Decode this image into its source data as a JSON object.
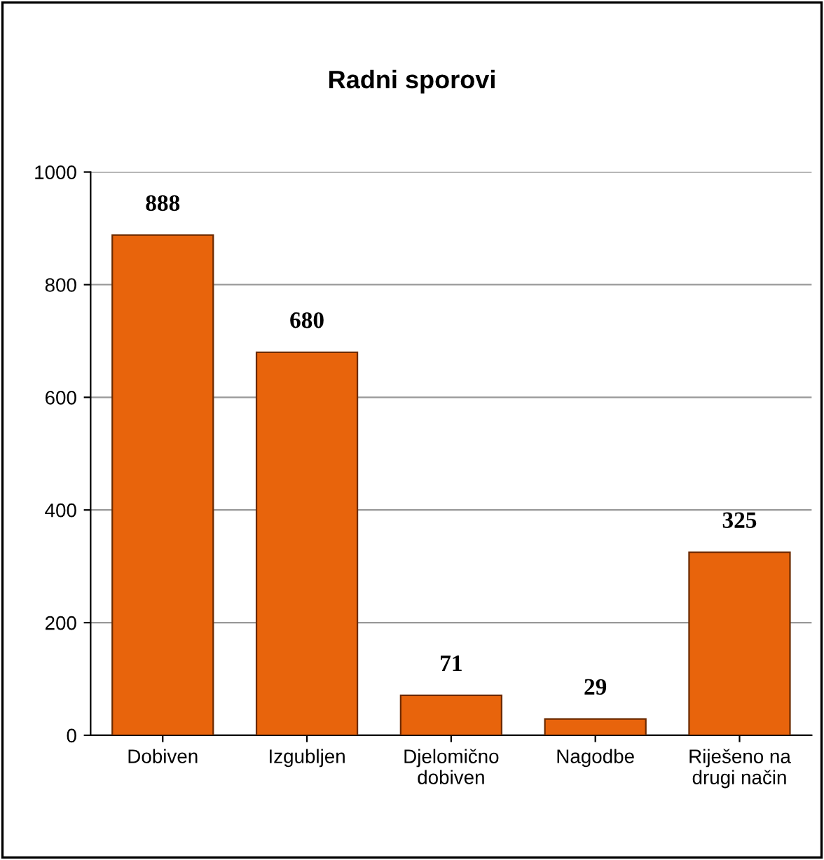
{
  "chart_data": {
    "type": "bar",
    "title": "Radni sporovi",
    "categories": [
      "Dobiven",
      "Izgubljen",
      "Djelomično\ndobiven",
      "Nagodbe",
      "Riješeno na\ndrugi način"
    ],
    "values": [
      888,
      680,
      71,
      29,
      325
    ],
    "color": "#e8640c",
    "ylim": [
      0,
      1000
    ],
    "yticks": [
      0,
      200,
      400,
      600,
      800,
      1000
    ],
    "grid": "y",
    "data_labels": true
  }
}
